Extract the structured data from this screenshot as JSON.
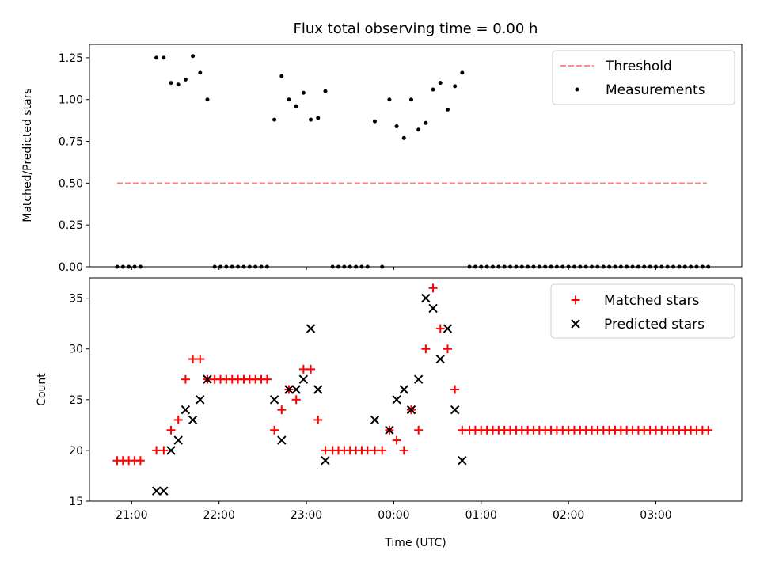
{
  "colors": {
    "threshold": "#ff7f7f",
    "measurements": "#000000",
    "matched": "#ff0000",
    "predicted": "#000000",
    "axes": "#000000",
    "background": "#ffffff"
  },
  "chart_data": [
    {
      "type": "scatter",
      "title": "Flux total observing time = 0.00 h",
      "ylabel": "Matched/Predicted stars",
      "xlabel": "",
      "xlim": [
        "20:31",
        "03:59"
      ],
      "ylim": [
        0,
        1.33
      ],
      "yticks": [
        0.0,
        0.25,
        0.5,
        0.75,
        1.0,
        1.25
      ],
      "ytick_labels": [
        "0.00",
        "0.25",
        "0.50",
        "0.75",
        "1.00",
        "1.25"
      ],
      "xticks": [
        "21:00",
        "22:00",
        "23:00",
        "00:00",
        "01:00",
        "02:00",
        "03:00"
      ],
      "show_xtick_labels": false,
      "legend": {
        "position": "top-right",
        "entries": [
          {
            "label": "Threshold",
            "marker": "dashed-line",
            "color": "#ff7f7f"
          },
          {
            "label": "Measurements",
            "marker": "dot",
            "color": "#000000"
          }
        ]
      },
      "series": [
        {
          "name": "Threshold",
          "style": "dashed-line",
          "color": "#ff7f7f",
          "x": [
            "20:50",
            "03:35"
          ],
          "y": [
            0.5,
            0.5
          ]
        },
        {
          "name": "Measurements",
          "style": "dot",
          "color": "#000000",
          "points": [
            [
              "20:50",
              0.0
            ],
            [
              "20:54",
              0.0
            ],
            [
              "20:58",
              0.0
            ],
            [
              "21:02",
              0.0
            ],
            [
              "21:06",
              0.0
            ],
            [
              "21:17",
              1.25
            ],
            [
              "21:22",
              1.25
            ],
            [
              "21:27",
              1.1
            ],
            [
              "21:32",
              1.09
            ],
            [
              "21:37",
              1.12
            ],
            [
              "21:42",
              1.26
            ],
            [
              "21:47",
              1.16
            ],
            [
              "21:52",
              1.0
            ],
            [
              "21:57",
              0.0
            ],
            [
              "22:01",
              0.0
            ],
            [
              "22:05",
              0.0
            ],
            [
              "22:09",
              0.0
            ],
            [
              "22:13",
              0.0
            ],
            [
              "22:17",
              0.0
            ],
            [
              "22:21",
              0.0
            ],
            [
              "22:25",
              0.0
            ],
            [
              "22:29",
              0.0
            ],
            [
              "22:33",
              0.0
            ],
            [
              "22:38",
              0.88
            ],
            [
              "22:43",
              1.14
            ],
            [
              "22:48",
              1.0
            ],
            [
              "22:53",
              0.96
            ],
            [
              "22:58",
              1.04
            ],
            [
              "23:03",
              0.88
            ],
            [
              "23:08",
              0.89
            ],
            [
              "23:13",
              1.05
            ],
            [
              "23:18",
              0.0
            ],
            [
              "23:22",
              0.0
            ],
            [
              "23:26",
              0.0
            ],
            [
              "23:30",
              0.0
            ],
            [
              "23:34",
              0.0
            ],
            [
              "23:38",
              0.0
            ],
            [
              "23:42",
              0.0
            ],
            [
              "23:47",
              0.87
            ],
            [
              "23:52",
              0.0
            ],
            [
              "23:57",
              1.0
            ],
            [
              "00:02",
              0.84
            ],
            [
              "00:07",
              0.77
            ],
            [
              "00:12",
              1.0
            ],
            [
              "00:17",
              0.82
            ],
            [
              "00:22",
              0.86
            ],
            [
              "00:27",
              1.06
            ],
            [
              "00:32",
              1.1
            ],
            [
              "00:37",
              0.94
            ],
            [
              "00:42",
              1.08
            ],
            [
              "00:47",
              1.16
            ],
            [
              "00:52",
              0.0
            ],
            [
              "00:56",
              0.0
            ],
            [
              "01:00",
              0.0
            ],
            [
              "01:04",
              0.0
            ],
            [
              "01:08",
              0.0
            ],
            [
              "01:12",
              0.0
            ],
            [
              "01:16",
              0.0
            ],
            [
              "01:20",
              0.0
            ],
            [
              "01:24",
              0.0
            ],
            [
              "01:28",
              0.0
            ],
            [
              "01:32",
              0.0
            ],
            [
              "01:36",
              0.0
            ],
            [
              "01:40",
              0.0
            ],
            [
              "01:44",
              0.0
            ],
            [
              "01:48",
              0.0
            ],
            [
              "01:52",
              0.0
            ],
            [
              "01:56",
              0.0
            ],
            [
              "02:00",
              0.0
            ],
            [
              "02:04",
              0.0
            ],
            [
              "02:08",
              0.0
            ],
            [
              "02:12",
              0.0
            ],
            [
              "02:16",
              0.0
            ],
            [
              "02:20",
              0.0
            ],
            [
              "02:24",
              0.0
            ],
            [
              "02:28",
              0.0
            ],
            [
              "02:32",
              0.0
            ],
            [
              "02:36",
              0.0
            ],
            [
              "02:40",
              0.0
            ],
            [
              "02:44",
              0.0
            ],
            [
              "02:48",
              0.0
            ],
            [
              "02:52",
              0.0
            ],
            [
              "02:56",
              0.0
            ],
            [
              "03:00",
              0.0
            ],
            [
              "03:04",
              0.0
            ],
            [
              "03:08",
              0.0
            ],
            [
              "03:12",
              0.0
            ],
            [
              "03:16",
              0.0
            ],
            [
              "03:20",
              0.0
            ],
            [
              "03:24",
              0.0
            ],
            [
              "03:28",
              0.0
            ],
            [
              "03:32",
              0.0
            ],
            [
              "03:36",
              0.0
            ]
          ]
        }
      ]
    },
    {
      "type": "scatter",
      "title": "",
      "ylabel": "Count",
      "xlabel": "Time (UTC)",
      "xlim": [
        "20:31",
        "03:59"
      ],
      "ylim": [
        15,
        37
      ],
      "yticks": [
        15,
        20,
        25,
        30,
        35
      ],
      "ytick_labels": [
        "15",
        "20",
        "25",
        "30",
        "35"
      ],
      "xticks": [
        "21:00",
        "22:00",
        "23:00",
        "00:00",
        "01:00",
        "02:00",
        "03:00"
      ],
      "xtick_labels": [
        "21:00",
        "22:00",
        "23:00",
        "00:00",
        "01:00",
        "02:00",
        "03:00"
      ],
      "legend": {
        "position": "top-right",
        "entries": [
          {
            "label": "Matched stars",
            "marker": "plus",
            "color": "#ff0000"
          },
          {
            "label": "Predicted stars",
            "marker": "x",
            "color": "#000000"
          }
        ]
      },
      "series": [
        {
          "name": "Matched stars",
          "style": "plus",
          "color": "#ff0000",
          "points": [
            [
              "20:50",
              19
            ],
            [
              "20:54",
              19
            ],
            [
              "20:58",
              19
            ],
            [
              "21:02",
              19
            ],
            [
              "21:06",
              19
            ],
            [
              "21:17",
              20
            ],
            [
              "21:22",
              20
            ],
            [
              "21:27",
              22
            ],
            [
              "21:32",
              23
            ],
            [
              "21:37",
              27
            ],
            [
              "21:42",
              29
            ],
            [
              "21:47",
              29
            ],
            [
              "21:52",
              27
            ],
            [
              "21:57",
              27
            ],
            [
              "22:01",
              27
            ],
            [
              "22:05",
              27
            ],
            [
              "22:09",
              27
            ],
            [
              "22:13",
              27
            ],
            [
              "22:17",
              27
            ],
            [
              "22:21",
              27
            ],
            [
              "22:25",
              27
            ],
            [
              "22:29",
              27
            ],
            [
              "22:33",
              27
            ],
            [
              "22:38",
              22
            ],
            [
              "22:43",
              24
            ],
            [
              "22:48",
              26
            ],
            [
              "22:53",
              25
            ],
            [
              "22:58",
              28
            ],
            [
              "23:03",
              28
            ],
            [
              "23:08",
              23
            ],
            [
              "23:13",
              20
            ],
            [
              "23:18",
              20
            ],
            [
              "23:22",
              20
            ],
            [
              "23:26",
              20
            ],
            [
              "23:30",
              20
            ],
            [
              "23:34",
              20
            ],
            [
              "23:38",
              20
            ],
            [
              "23:42",
              20
            ],
            [
              "23:47",
              20
            ],
            [
              "23:52",
              20
            ],
            [
              "23:57",
              22
            ],
            [
              "00:02",
              21
            ],
            [
              "00:07",
              20
            ],
            [
              "00:12",
              24
            ],
            [
              "00:17",
              22
            ],
            [
              "00:22",
              30
            ],
            [
              "00:27",
              36
            ],
            [
              "00:32",
              32
            ],
            [
              "00:37",
              30
            ],
            [
              "00:42",
              26
            ],
            [
              "00:47",
              22
            ],
            [
              "00:52",
              22
            ],
            [
              "00:56",
              22
            ],
            [
              "01:00",
              22
            ],
            [
              "01:04",
              22
            ],
            [
              "01:08",
              22
            ],
            [
              "01:12",
              22
            ],
            [
              "01:16",
              22
            ],
            [
              "01:20",
              22
            ],
            [
              "01:24",
              22
            ],
            [
              "01:28",
              22
            ],
            [
              "01:32",
              22
            ],
            [
              "01:36",
              22
            ],
            [
              "01:40",
              22
            ],
            [
              "01:44",
              22
            ],
            [
              "01:48",
              22
            ],
            [
              "01:52",
              22
            ],
            [
              "01:56",
              22
            ],
            [
              "02:00",
              22
            ],
            [
              "02:04",
              22
            ],
            [
              "02:08",
              22
            ],
            [
              "02:12",
              22
            ],
            [
              "02:16",
              22
            ],
            [
              "02:20",
              22
            ],
            [
              "02:24",
              22
            ],
            [
              "02:28",
              22
            ],
            [
              "02:32",
              22
            ],
            [
              "02:36",
              22
            ],
            [
              "02:40",
              22
            ],
            [
              "02:44",
              22
            ],
            [
              "02:48",
              22
            ],
            [
              "02:52",
              22
            ],
            [
              "02:56",
              22
            ],
            [
              "03:00",
              22
            ],
            [
              "03:04",
              22
            ],
            [
              "03:08",
              22
            ],
            [
              "03:12",
              22
            ],
            [
              "03:16",
              22
            ],
            [
              "03:20",
              22
            ],
            [
              "03:24",
              22
            ],
            [
              "03:28",
              22
            ],
            [
              "03:32",
              22
            ],
            [
              "03:36",
              22
            ]
          ]
        },
        {
          "name": "Predicted stars",
          "style": "x",
          "color": "#000000",
          "points": [
            [
              "21:17",
              16
            ],
            [
              "21:22",
              16
            ],
            [
              "21:27",
              20
            ],
            [
              "21:32",
              21
            ],
            [
              "21:37",
              24
            ],
            [
              "21:42",
              23
            ],
            [
              "21:47",
              25
            ],
            [
              "21:52",
              27
            ],
            [
              "22:38",
              25
            ],
            [
              "22:43",
              21
            ],
            [
              "22:48",
              26
            ],
            [
              "22:53",
              26
            ],
            [
              "22:58",
              27
            ],
            [
              "23:03",
              32
            ],
            [
              "23:08",
              26
            ],
            [
              "23:13",
              19
            ],
            [
              "23:47",
              23
            ],
            [
              "23:57",
              22
            ],
            [
              "00:02",
              25
            ],
            [
              "00:07",
              26
            ],
            [
              "00:12",
              24
            ],
            [
              "00:17",
              27
            ],
            [
              "00:22",
              35
            ],
            [
              "00:27",
              34
            ],
            [
              "00:32",
              29
            ],
            [
              "00:37",
              32
            ],
            [
              "00:42",
              24
            ],
            [
              "00:47",
              19
            ]
          ]
        }
      ]
    }
  ]
}
